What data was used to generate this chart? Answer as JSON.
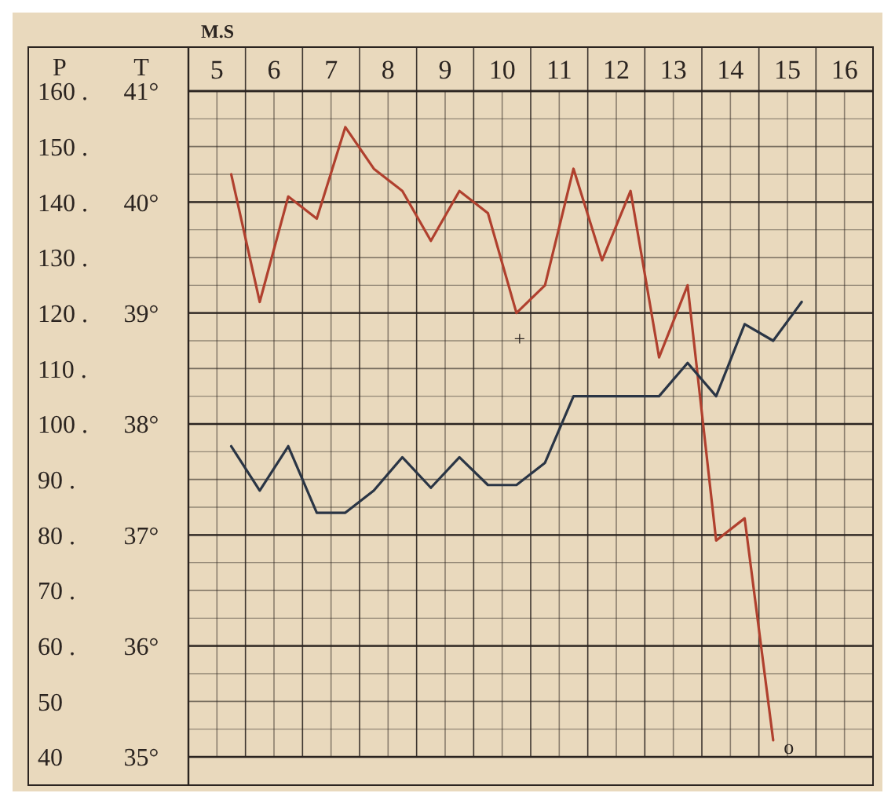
{
  "chart_data": {
    "type": "line",
    "xlabel": "M.S",
    "ylabel": "P",
    "y2label": "T",
    "xlim": [
      4.5,
      16.5
    ],
    "xticks": [
      5,
      6,
      7,
      8,
      9,
      10,
      11,
      12,
      13,
      14,
      15,
      16
    ],
    "ylim": [
      40,
      160
    ],
    "yticks": [
      {
        "value": 40,
        "label": "40"
      },
      {
        "value": 50,
        "label": "50"
      },
      {
        "value": 60,
        "label": "60 ."
      },
      {
        "value": 70,
        "label": "70 ."
      },
      {
        "value": 80,
        "label": "80 ."
      },
      {
        "value": 90,
        "label": "90 ."
      },
      {
        "value": 100,
        "label": "100 ."
      },
      {
        "value": 110,
        "label": "110 ."
      },
      {
        "value": 120,
        "label": "120 ."
      },
      {
        "value": 130,
        "label": "130 ."
      },
      {
        "value": 140,
        "label": "140 ."
      },
      {
        "value": 150,
        "label": "150 ."
      },
      {
        "value": 160,
        "label": "160 ."
      }
    ],
    "y2lim": [
      35,
      41
    ],
    "y2ticks": [
      {
        "value": 35,
        "label": "35°"
      },
      {
        "value": 36,
        "label": "36°"
      },
      {
        "value": 37,
        "label": "37°"
      },
      {
        "value": 38,
        "label": "38°"
      },
      {
        "value": 39,
        "label": "39°"
      },
      {
        "value": 40,
        "label": "40°"
      },
      {
        "value": 41,
        "label": "41°"
      }
    ],
    "grid": true,
    "series": [
      {
        "color": "#b0402e",
        "x": [
          5.25,
          5.75,
          6.25,
          6.75,
          7.25,
          7.75,
          8.25,
          8.75,
          9.25,
          9.75,
          10.25,
          10.75,
          11.25,
          11.75,
          12.25,
          12.75,
          13.25,
          13.75,
          14.25,
          14.75
        ],
        "values": [
          145,
          122,
          141,
          137,
          153.5,
          146,
          142,
          133,
          142,
          138,
          120,
          125,
          146,
          129.5,
          142,
          112,
          125,
          79,
          83,
          43
        ]
      },
      {
        "color": "#2a3545",
        "x": [
          5.25,
          5.75,
          6.25,
          6.75,
          7.25,
          7.75,
          8.25,
          8.75,
          9.25,
          9.75,
          10.25,
          10.75,
          11.25,
          11.75,
          12.25,
          12.75,
          13.25,
          13.75,
          14.25,
          14.75,
          15.25
        ],
        "values": [
          96,
          88,
          96,
          84,
          84,
          88,
          94,
          88.5,
          94,
          89,
          89,
          93,
          105,
          105,
          105,
          105,
          111,
          105,
          118,
          115,
          122
        ]
      }
    ],
    "annotations": [
      "+",
      "o"
    ]
  }
}
